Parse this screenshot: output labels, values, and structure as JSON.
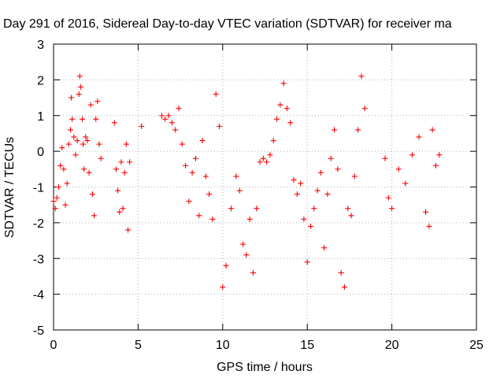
{
  "chart_data": {
    "type": "scatter",
    "title": "Day 291 of 2016, Sidereal Day-to-day VTEC variation (SDTVAR) for receiver ma",
    "xlabel": "GPS time / hours",
    "ylabel": "SDTVAR / TECUs",
    "xlim": [
      0,
      25
    ],
    "ylim": [
      -5,
      3
    ],
    "xticks": [
      0,
      5,
      10,
      15,
      20,
      25
    ],
    "yticks": [
      -5,
      -4,
      -3,
      -2,
      -1,
      0,
      1,
      2,
      3
    ],
    "xtick_labels": [
      "0",
      "5",
      "10",
      "15",
      "20",
      "25"
    ],
    "ytick_labels": [
      "-5",
      "-4",
      "-3",
      "-2",
      "-1",
      "0",
      "1",
      "2",
      "3"
    ],
    "grid": true,
    "marker": "+",
    "series": [
      {
        "name": "SDTVAR",
        "color": "#ff0000",
        "x": [
          0.0,
          0.1,
          0.2,
          0.3,
          0.4,
          0.5,
          0.6,
          0.7,
          0.8,
          0.9,
          1.0,
          1.05,
          1.1,
          1.2,
          1.3,
          1.4,
          1.5,
          1.55,
          1.6,
          1.7,
          1.75,
          1.8,
          1.9,
          2.0,
          2.1,
          2.2,
          2.3,
          2.4,
          2.5,
          2.6,
          2.7,
          2.8,
          3.6,
          3.7,
          3.8,
          3.9,
          4.0,
          4.1,
          4.2,
          4.3,
          4.4,
          4.5,
          5.2,
          6.4,
          6.6,
          6.8,
          7.0,
          7.2,
          7.4,
          7.6,
          7.8,
          8.0,
          8.2,
          8.4,
          8.6,
          8.8,
          9.0,
          9.2,
          9.4,
          9.6,
          9.8,
          10.0,
          10.2,
          10.5,
          10.8,
          11.0,
          11.2,
          11.4,
          11.6,
          11.8,
          12.0,
          12.2,
          12.4,
          12.6,
          12.8,
          13.0,
          13.2,
          13.4,
          13.6,
          13.8,
          14.0,
          14.2,
          14.4,
          14.6,
          14.8,
          15.0,
          15.2,
          15.4,
          15.6,
          15.8,
          16.0,
          16.2,
          16.4,
          16.6,
          16.8,
          17.0,
          17.2,
          17.4,
          17.6,
          17.8,
          18.0,
          18.2,
          18.4,
          19.6,
          19.8,
          20.0,
          20.4,
          20.8,
          21.2,
          21.6,
          22.0,
          22.2,
          22.4,
          22.6,
          22.8
        ],
        "y": [
          -1.4,
          -1.6,
          -1.3,
          -1.0,
          -0.4,
          0.1,
          -0.5,
          -1.5,
          -0.9,
          0.2,
          0.6,
          1.5,
          0.9,
          0.4,
          -0.1,
          0.3,
          1.6,
          2.1,
          1.8,
          0.9,
          0.2,
          -0.5,
          0.4,
          0.3,
          -0.6,
          1.3,
          -1.2,
          -1.8,
          0.9,
          1.4,
          0.2,
          -0.2,
          0.8,
          -0.5,
          -1.1,
          -1.7,
          -0.3,
          -1.6,
          -0.6,
          0.2,
          -2.2,
          -0.3,
          0.7,
          1.0,
          0.9,
          1.0,
          0.8,
          0.6,
          1.2,
          0.2,
          -0.4,
          -1.4,
          -0.6,
          -0.2,
          -1.8,
          0.3,
          -0.7,
          -1.2,
          -1.9,
          1.6,
          0.7,
          -3.8,
          -3.2,
          -1.6,
          -0.7,
          -1.1,
          -2.6,
          -2.9,
          -1.9,
          -3.4,
          -1.6,
          -0.3,
          -0.2,
          -0.3,
          -0.1,
          0.3,
          0.9,
          1.3,
          1.9,
          1.2,
          0.8,
          -0.8,
          -1.2,
          -0.9,
          -1.9,
          -3.1,
          -2.1,
          -1.6,
          -1.1,
          -0.6,
          -2.7,
          -1.2,
          -0.2,
          0.6,
          -0.5,
          -3.4,
          -3.8,
          -1.6,
          -1.8,
          -0.7,
          0.6,
          2.1,
          1.2,
          -0.2,
          -1.3,
          -1.6,
          -0.5,
          -0.9,
          -0.1,
          0.4,
          -1.7,
          -2.1,
          0.6,
          -0.4,
          -0.1
        ]
      }
    ]
  }
}
